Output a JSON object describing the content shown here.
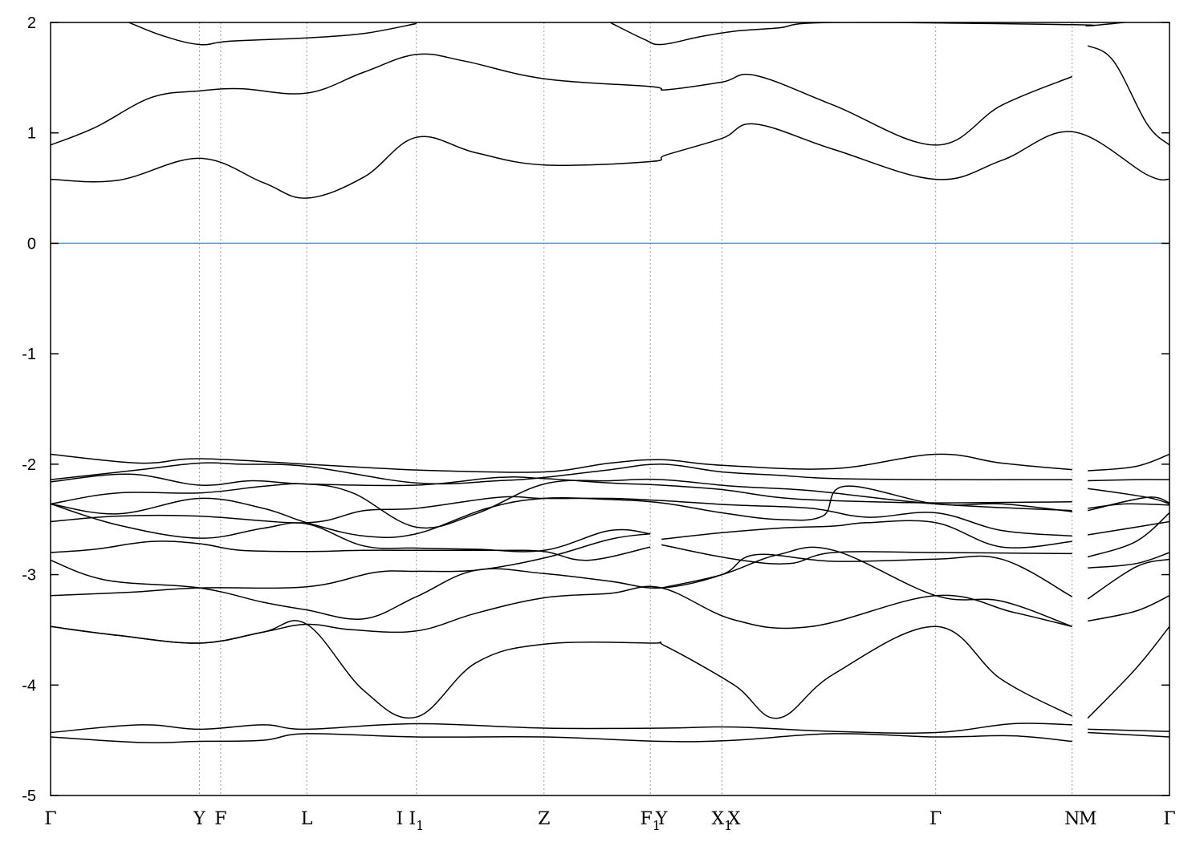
{
  "chart_data": {
    "type": "line",
    "title": "",
    "xlabel": "",
    "ylabel": "",
    "ylim": [
      -5,
      2
    ],
    "yticks": [
      2,
      1,
      0,
      -1,
      -2,
      -3,
      -4,
      -5
    ],
    "ytick_labels": [
      "2",
      "1",
      "0",
      "-1",
      "-2",
      "-3",
      "-4",
      "-5"
    ],
    "grid": false,
    "fermi_level": 0,
    "colors": {
      "bands": "#000000",
      "fermi_line": "#3fa9c0",
      "kpoint_lines": "#9a9a9a"
    },
    "high_symmetry_points": [
      {
        "label": "Γ",
        "sub": "",
        "x": 0
      },
      {
        "label": "Y",
        "sub": "",
        "x": 1.33
      },
      {
        "label": "F",
        "sub": "",
        "x": 1.52
      },
      {
        "label": "L",
        "sub": "",
        "x": 2.29
      },
      {
        "label": "I",
        "sub": "",
        "x": 3.12
      },
      {
        "label": "I",
        "sub": "1",
        "x": 3.27
      },
      {
        "label": "Z",
        "sub": "",
        "x": 4.41
      },
      {
        "label": "F",
        "sub": "1",
        "x": 5.36
      },
      {
        "label": "Y",
        "sub": "",
        "x": 5.46
      },
      {
        "label": "X",
        "sub": "1",
        "x": 6.0
      },
      {
        "label": "X",
        "sub": "",
        "x": 6.11
      },
      {
        "label": "Γ",
        "sub": "",
        "x": 7.91
      },
      {
        "label": "N",
        "sub": "",
        "x": 9.13
      },
      {
        "label": "M",
        "sub": "",
        "x": 9.27
      },
      {
        "label": "Γ",
        "sub": "",
        "x": 10.0
      }
    ],
    "kpoint_grid_lines": [
      1.33,
      1.52,
      2.29,
      3.27,
      4.41,
      5.36,
      6.0,
      7.91,
      9.13
    ],
    "xlim": [
      0,
      10
    ],
    "series": [
      {
        "x": [
          0,
          0.6,
          1.33,
          1.9,
          2.29,
          2.8,
          3.27,
          3.8,
          4.41,
          5.36,
          5.5,
          6.0,
          6.3,
          7.0,
          7.91,
          8.5,
          9.13,
          9.8,
          10
        ],
        "y": [
          0.58,
          0.57,
          0.77,
          0.55,
          0.41,
          0.6,
          0.96,
          0.82,
          0.71,
          0.74,
          0.8,
          0.95,
          1.08,
          0.85,
          0.58,
          0.75,
          1.01,
          0.62,
          0.58
        ]
      },
      {
        "x": [
          0,
          0.4,
          0.9,
          1.33,
          1.7,
          2.29,
          2.8,
          3.27,
          3.7,
          4.41,
          5.36,
          5.5,
          6.0,
          6.3,
          7.0,
          7.91,
          8.5,
          9.13
        ],
        "y": [
          0.89,
          1.05,
          1.32,
          1.38,
          1.4,
          1.36,
          1.55,
          1.71,
          1.65,
          1.49,
          1.42,
          1.39,
          1.46,
          1.52,
          1.25,
          0.89,
          1.25,
          1.51
        ]
      },
      {
        "x": [
          9.27,
          9.5,
          9.8,
          10
        ],
        "y": [
          1.79,
          1.65,
          1.08,
          0.89
        ]
      },
      {
        "x": [
          0.7,
          1.0,
          1.33,
          1.6,
          2.29,
          2.8,
          3.27
        ],
        "y": [
          2.0,
          1.88,
          1.8,
          1.83,
          1.86,
          1.9,
          1.99
        ]
      },
      {
        "x": [
          5.0,
          5.3,
          5.46,
          5.8,
          6.11,
          6.5,
          7.0,
          9.13,
          9.27,
          9.6
        ],
        "y": [
          2.0,
          1.85,
          1.8,
          1.87,
          1.92,
          1.95,
          2.0,
          1.98,
          1.97,
          2.0
        ]
      },
      {
        "x": [
          0,
          0.8,
          1.33,
          2.29,
          3.0,
          3.5,
          4.41,
          5.0,
          5.46,
          6.0,
          7.0,
          7.91,
          8.5,
          9.13
        ],
        "y": [
          -1.91,
          -1.99,
          -1.95,
          -2.0,
          -2.04,
          -2.06,
          -2.07,
          -1.99,
          -1.96,
          -2.01,
          -2.04,
          -1.91,
          -1.99,
          -2.05
        ]
      },
      {
        "x": [
          9.27,
          9.7,
          10
        ],
        "y": [
          -2.06,
          -2.02,
          -1.91
        ]
      },
      {
        "x": [
          0,
          0.8,
          1.33,
          1.7,
          2.29,
          3.27,
          4.0,
          4.41,
          5.0,
          5.46,
          6.0,
          6.5,
          7.0,
          7.91,
          9.13
        ],
        "y": [
          -2.14,
          -2.05,
          -1.99,
          -2.0,
          -2.02,
          -2.17,
          -2.15,
          -2.12,
          -2.05,
          -2.0,
          -2.07,
          -2.1,
          -2.13,
          -2.14,
          -2.14
        ]
      },
      {
        "x": [
          9.27,
          9.7,
          10
        ],
        "y": [
          -2.15,
          -2.14,
          -2.14
        ]
      },
      {
        "x": [
          0,
          0.7,
          1.33,
          1.8,
          2.29,
          3.27,
          4.0,
          4.41,
          5.0,
          5.46,
          6.0,
          6.5,
          7.0,
          7.91,
          9.13
        ],
        "y": [
          -2.16,
          -2.09,
          -2.19,
          -2.15,
          -2.18,
          -2.19,
          -2.12,
          -2.13,
          -2.17,
          -2.19,
          -2.23,
          -2.3,
          -2.33,
          -2.35,
          -2.34
        ]
      },
      {
        "x": [
          9.27,
          9.8,
          10
        ],
        "y": [
          -2.42,
          -2.3,
          -2.35
        ]
      },
      {
        "x": [
          0,
          0.6,
          1.33,
          1.9,
          2.29,
          2.7,
          3.27,
          3.8,
          4.41,
          5.0,
          5.46,
          6.11,
          6.8,
          7.91,
          9.13
        ],
        "y": [
          -2.36,
          -2.26,
          -2.26,
          -2.2,
          -2.18,
          -2.26,
          -2.57,
          -2.45,
          -2.18,
          -2.15,
          -2.14,
          -2.2,
          -2.24,
          -2.36,
          -2.42
        ]
      },
      {
        "x": [
          9.27,
          9.8,
          10
        ],
        "y": [
          -2.22,
          -2.3,
          -2.36
        ]
      },
      {
        "x": [
          0,
          0.6,
          1.33,
          1.9,
          2.29,
          2.8,
          3.27,
          3.9,
          4.41,
          5.0,
          5.46,
          6.0,
          6.5,
          6.9,
          7.1,
          7.91,
          8.5,
          9.13
        ],
        "y": [
          -2.36,
          -2.45,
          -2.31,
          -2.4,
          -2.53,
          -2.65,
          -2.63,
          -2.4,
          -2.31,
          -2.32,
          -2.35,
          -2.44,
          -2.5,
          -2.47,
          -2.2,
          -2.36,
          -2.36,
          -2.43
        ]
      },
      {
        "x": [
          9.27,
          9.6,
          10
        ],
        "y": [
          -2.4,
          -2.36,
          -2.37
        ]
      },
      {
        "x": [
          0,
          0.6,
          1.33,
          2.29,
          2.8,
          3.27,
          4.0,
          4.41,
          5.0,
          5.46,
          6.11,
          6.8,
          7.3,
          7.91,
          8.5,
          9.13
        ],
        "y": [
          -2.52,
          -2.47,
          -2.47,
          -2.53,
          -2.42,
          -2.4,
          -2.3,
          -2.31,
          -2.31,
          -2.33,
          -2.37,
          -2.4,
          -2.48,
          -2.44,
          -2.6,
          -2.65
        ]
      },
      {
        "x": [
          9.27,
          9.7,
          10
        ],
        "y": [
          -2.64,
          -2.57,
          -2.52
        ]
      },
      {
        "x": [
          0,
          0.6,
          1.33,
          1.9,
          2.29,
          2.8,
          3.27,
          3.8,
          4.41,
          5.0,
          5.36
        ],
        "y": [
          -2.36,
          -2.55,
          -2.67,
          -2.58,
          -2.54,
          -2.74,
          -2.76,
          -2.77,
          -2.78,
          -2.6,
          -2.63
        ]
      },
      {
        "x": [
          5.46,
          6.0,
          6.5,
          7.0,
          7.3,
          7.91,
          8.5,
          9.13
        ],
        "y": [
          -2.68,
          -2.62,
          -2.58,
          -2.56,
          -2.53,
          -2.53,
          -2.75,
          -2.7
        ]
      },
      {
        "x": [
          9.27,
          9.7,
          10
        ],
        "y": [
          -2.84,
          -2.7,
          -2.44
        ]
      },
      {
        "x": [
          0,
          0.4,
          0.9,
          1.33,
          1.7,
          2.29,
          2.8,
          3.27,
          4.0,
          4.41,
          4.8,
          5.36
        ],
        "y": [
          -2.8,
          -2.77,
          -2.7,
          -2.72,
          -2.78,
          -2.79,
          -2.78,
          -2.78,
          -2.78,
          -2.79,
          -2.87,
          -2.75
        ]
      },
      {
        "x": [
          5.46,
          6.11,
          6.6,
          7.0,
          7.91,
          9.13
        ],
        "y": [
          -2.73,
          -2.86,
          -2.9,
          -2.8,
          -2.8,
          -2.81
        ]
      },
      {
        "x": [
          9.27,
          9.7,
          10
        ],
        "y": [
          -2.94,
          -2.9,
          -2.8
        ]
      },
      {
        "x": [
          0,
          0.5,
          1.33,
          1.9,
          2.29,
          2.8,
          3.27,
          3.8,
          4.41,
          5.0,
          5.46,
          6.0,
          6.3,
          7.0,
          7.91,
          8.5,
          9.13
        ],
        "y": [
          -2.87,
          -3.05,
          -3.12,
          -3.25,
          -3.32,
          -3.4,
          -3.2,
          -2.96,
          -2.99,
          -3.06,
          -3.12,
          -3.0,
          -2.82,
          -2.88,
          -2.86,
          -2.86,
          -3.2
        ]
      },
      {
        "x": [
          9.27,
          9.7,
          10
        ],
        "y": [
          -3.22,
          -2.93,
          -2.86
        ]
      },
      {
        "x": [
          0,
          0.7,
          1.33,
          2.29,
          2.9,
          3.27,
          3.8,
          4.41,
          5.0,
          5.36
        ],
        "y": [
          -3.19,
          -3.16,
          -3.12,
          -3.11,
          -2.98,
          -2.97,
          -2.96,
          -2.85,
          -2.68,
          -2.63
        ]
      },
      {
        "x": [
          5.46,
          6.0,
          6.5,
          7.0,
          7.91,
          8.5,
          9.13
        ],
        "y": [
          -3.12,
          -3.0,
          -2.82,
          -2.78,
          -3.19,
          -3.24,
          -3.47
        ]
      },
      {
        "x": [
          9.27,
          9.7,
          10
        ],
        "y": [
          -3.42,
          -3.33,
          -3.19
        ]
      },
      {
        "x": [
          0,
          0.6,
          1.33,
          1.9,
          2.29,
          2.7,
          3.27,
          3.8,
          4.41,
          5.0,
          5.46,
          6.11,
          6.8,
          7.91,
          8.6,
          9.13
        ],
        "y": [
          -3.47,
          -3.55,
          -3.62,
          -3.52,
          -3.45,
          -3.5,
          -3.51,
          -3.35,
          -3.21,
          -3.17,
          -3.12,
          -3.41,
          -3.47,
          -3.19,
          -3.34,
          -3.47
        ]
      },
      {
        "x": [
          0,
          0.6,
          1.33,
          1.9,
          2.29,
          2.8,
          3.27,
          3.8,
          4.41,
          5.36,
          5.5,
          6.11,
          6.5,
          7.0,
          7.91,
          8.5,
          9.13
        ],
        "y": [
          -3.47,
          -3.55,
          -3.62,
          -3.52,
          -3.45,
          -4.05,
          -4.29,
          -3.8,
          -3.63,
          -3.62,
          -3.65,
          -4.0,
          -4.3,
          -3.9,
          -3.47,
          -3.95,
          -4.28
        ]
      },
      {
        "x": [
          9.27,
          9.7,
          10
        ],
        "y": [
          -4.3,
          -3.85,
          -3.47
        ]
      },
      {
        "x": [
          0,
          0.8,
          1.33,
          1.9,
          2.29,
          3.27,
          4.41,
          5.46,
          6.11,
          7.0,
          7.91,
          8.6,
          9.13
        ],
        "y": [
          -4.43,
          -4.36,
          -4.4,
          -4.36,
          -4.4,
          -4.35,
          -4.39,
          -4.39,
          -4.38,
          -4.42,
          -4.43,
          -4.35,
          -4.36
        ]
      },
      {
        "x": [
          9.27,
          10
        ],
        "y": [
          -4.4,
          -4.42
        ]
      },
      {
        "x": [
          0,
          0.8,
          1.33,
          1.9,
          2.29,
          3.27,
          4.41,
          5.46,
          6.11,
          7.0,
          7.91,
          8.6,
          9.13
        ],
        "y": [
          -4.47,
          -4.52,
          -4.51,
          -4.5,
          -4.44,
          -4.47,
          -4.47,
          -4.51,
          -4.5,
          -4.44,
          -4.47,
          -4.46,
          -4.51
        ]
      },
      {
        "x": [
          9.27,
          10
        ],
        "y": [
          -4.43,
          -4.47
        ]
      }
    ]
  }
}
